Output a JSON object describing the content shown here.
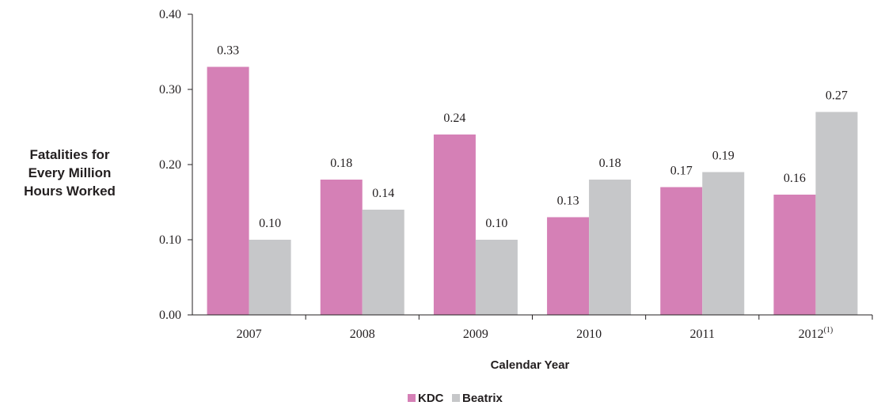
{
  "chart_data": {
    "type": "bar",
    "categories": [
      "2007",
      "2008",
      "2009",
      "2010",
      "2011",
      "2012"
    ],
    "category_superscripts": [
      "",
      "",
      "",
      "",
      "",
      "(1)"
    ],
    "series": [
      {
        "name": "KDC",
        "values": [
          0.33,
          0.18,
          0.24,
          0.13,
          0.17,
          0.16
        ],
        "value_labels": [
          "0.33",
          "0.18",
          "0.24",
          "0.13",
          "0.17",
          "0.16"
        ],
        "color": "#d580b6"
      },
      {
        "name": "Beatrix",
        "values": [
          0.1,
          0.14,
          0.1,
          0.18,
          0.19,
          0.27
        ],
        "value_labels": [
          "0.10",
          "0.14",
          "0.10",
          "0.18",
          "0.19",
          "0.27"
        ],
        "color": "#c6c7c9"
      }
    ],
    "ylabel_lines": [
      "Fatalities for",
      "Every Million",
      "Hours Worked"
    ],
    "xlabel": "Calendar Year",
    "ylim": [
      0,
      0.4
    ],
    "yticks": [
      0,
      0.1,
      0.2,
      0.3,
      0.4
    ],
    "ytick_labels": [
      "0.00",
      "0.10",
      "0.20",
      "0.30",
      "0.40"
    ],
    "grid": false,
    "legend_position": "bottom-center"
  }
}
